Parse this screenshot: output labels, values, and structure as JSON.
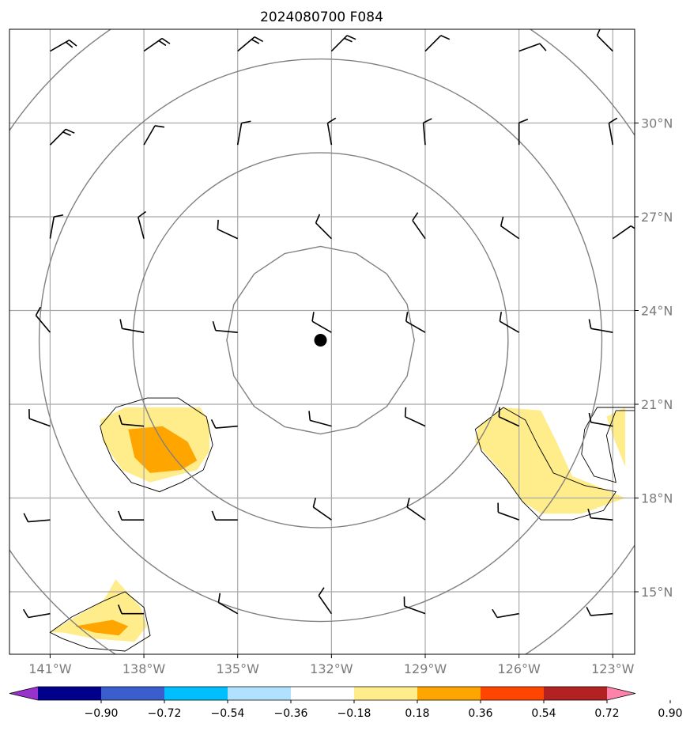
{
  "chart_data": {
    "type": "map",
    "title": "2024080700 F084",
    "x_ticks": [
      {
        "lon": 141,
        "label": "141°W"
      },
      {
        "lon": 138,
        "label": "138°W"
      },
      {
        "lon": 135,
        "label": "135°W"
      },
      {
        "lon": 132,
        "label": "132°W"
      },
      {
        "lon": 129,
        "label": "129°W"
      },
      {
        "lon": 126,
        "label": "126°W"
      },
      {
        "lon": 123,
        "label": "123°W"
      }
    ],
    "y_ticks": [
      {
        "lat": 30,
        "label": "30°N"
      },
      {
        "lat": 27,
        "label": "27°N"
      },
      {
        "lat": 24,
        "label": "24°N"
      },
      {
        "lat": 21,
        "label": "21°N"
      },
      {
        "lat": 18,
        "label": "18°N"
      },
      {
        "lat": 15,
        "label": "15°N"
      }
    ],
    "grid": true,
    "xlim_lon_west": [
      142.3,
      122.3
    ],
    "ylim_lat": [
      13,
      33
    ],
    "center": {
      "lon": 132.35,
      "lat": 23.05
    },
    "range_ring_radii_deg": [
      3,
      6,
      9,
      12
    ],
    "colorbar": {
      "extend": "both",
      "ticks": [
        "−0.90",
        "−0.72",
        "−0.54",
        "−0.36",
        "−0.18",
        "0.18",
        "0.36",
        "0.54",
        "0.72",
        "0.90"
      ],
      "colors": [
        "#9932cc",
        "#00008b",
        "#3a5fcd",
        "#00bfff",
        "#b0e2ff",
        "#ffffff",
        "#ffec8b",
        "#ffa500",
        "#ff4500",
        "#b22222",
        "#ff82ab"
      ]
    },
    "shaded_regions": [
      {
        "level": "0.18–0.36",
        "color": "#ffec8b",
        "polygon": [
          [
            139.4,
            20.5
          ],
          [
            138.6,
            20.9
          ],
          [
            136.2,
            20.9
          ],
          [
            135.9,
            20.4
          ],
          [
            135.9,
            19.5
          ],
          [
            136.3,
            18.9
          ],
          [
            137.8,
            18.5
          ],
          [
            138.7,
            18.9
          ],
          [
            139.3,
            19.8
          ]
        ]
      },
      {
        "level": "0.36–0.54",
        "color": "#ffa500",
        "polygon": [
          [
            138.5,
            20.2
          ],
          [
            137.4,
            20.3
          ],
          [
            136.6,
            19.8
          ],
          [
            136.3,
            19.2
          ],
          [
            136.8,
            18.9
          ],
          [
            137.8,
            18.8
          ],
          [
            138.3,
            19.3
          ]
        ]
      },
      {
        "level": "0.18–0.36",
        "color": "#ffec8b",
        "polygon": [
          [
            127.3,
            20.3
          ],
          [
            126.5,
            20.9
          ],
          [
            125.3,
            20.8
          ],
          [
            124.8,
            19.8
          ],
          [
            124.3,
            18.7
          ],
          [
            123.3,
            18.3
          ],
          [
            122.6,
            18.0
          ],
          [
            124.0,
            17.5
          ],
          [
            125.3,
            17.5
          ],
          [
            125.9,
            17.9
          ],
          [
            126.6,
            18.9
          ],
          [
            127.4,
            19.8
          ]
        ]
      },
      {
        "level": "0.18–0.36",
        "color": "#ffec8b",
        "polygon": [
          [
            122.6,
            20.9
          ],
          [
            123.2,
            20.6
          ],
          [
            123.0,
            20.0
          ],
          [
            122.6,
            19.0
          ]
        ]
      },
      {
        "level": "0.18–0.36",
        "color": "#ffec8b",
        "polygon": [
          [
            141.0,
            13.7
          ],
          [
            140.2,
            14.2
          ],
          [
            139.3,
            14.7
          ],
          [
            138.9,
            15.4
          ],
          [
            138.1,
            14.5
          ],
          [
            137.9,
            13.9
          ],
          [
            138.3,
            13.4
          ],
          [
            139.6,
            13.5
          ],
          [
            140.6,
            13.7
          ]
        ]
      },
      {
        "level": "0.36–0.54",
        "color": "#ffa500",
        "polygon": [
          [
            140.2,
            13.9
          ],
          [
            139.0,
            14.1
          ],
          [
            138.5,
            13.9
          ],
          [
            138.8,
            13.6
          ],
          [
            139.6,
            13.7
          ]
        ]
      }
    ],
    "outline_contours": [
      [
        [
          139.4,
          20.3
        ],
        [
          138.9,
          20.9
        ],
        [
          137.9,
          21.2
        ],
        [
          136.9,
          21.2
        ],
        [
          136.0,
          20.6
        ],
        [
          135.8,
          19.7
        ],
        [
          136.1,
          18.9
        ],
        [
          136.8,
          18.5
        ],
        [
          137.5,
          18.2
        ],
        [
          138.4,
          18.5
        ],
        [
          139.0,
          19.2
        ],
        [
          139.3,
          19.9
        ]
      ],
      [
        [
          127.4,
          20.2
        ],
        [
          126.5,
          20.9
        ],
        [
          125.8,
          20.5
        ],
        [
          125.4,
          19.7
        ],
        [
          124.9,
          18.8
        ],
        [
          123.9,
          18.4
        ],
        [
          122.9,
          18.2
        ],
        [
          123.3,
          17.6
        ],
        [
          124.3,
          17.3
        ],
        [
          125.3,
          17.3
        ],
        [
          125.9,
          17.9
        ],
        [
          126.4,
          18.6
        ],
        [
          127.2,
          19.5
        ]
      ],
      [
        [
          122.3,
          20.8
        ],
        [
          122.9,
          20.8
        ],
        [
          123.2,
          20.0
        ],
        [
          123.0,
          19.0
        ],
        [
          122.9,
          18.5
        ],
        [
          123.6,
          18.7
        ],
        [
          124.0,
          19.4
        ],
        [
          123.9,
          20.2
        ],
        [
          123.5,
          20.9
        ],
        [
          122.3,
          20.9
        ]
      ],
      [
        [
          141.0,
          13.7
        ],
        [
          140.3,
          14.2
        ],
        [
          139.3,
          14.7
        ],
        [
          138.6,
          15.0
        ],
        [
          138.0,
          14.5
        ],
        [
          137.8,
          13.6
        ],
        [
          138.6,
          13.1
        ],
        [
          139.8,
          13.2
        ],
        [
          140.6,
          13.5
        ]
      ]
    ],
    "wind_barbs": [
      {
        "lon": 141,
        "lat": 32.3,
        "dir": 60,
        "speed": 15
      },
      {
        "lon": 138,
        "lat": 32.3,
        "dir": 55,
        "speed": 15
      },
      {
        "lon": 135,
        "lat": 32.3,
        "dir": 50,
        "speed": 15
      },
      {
        "lon": 132,
        "lat": 32.3,
        "dir": 45,
        "speed": 15
      },
      {
        "lon": 129,
        "lat": 32.3,
        "dir": 45,
        "speed": 10
      },
      {
        "lon": 126,
        "lat": 32.3,
        "dir": 70,
        "speed": 10
      },
      {
        "lon": 123,
        "lat": 32.3,
        "dir": 315,
        "speed": 10
      },
      {
        "lon": 141,
        "lat": 29.3,
        "dir": 45,
        "speed": 15
      },
      {
        "lon": 138,
        "lat": 29.3,
        "dir": 30,
        "speed": 10
      },
      {
        "lon": 135,
        "lat": 29.3,
        "dir": 10,
        "speed": 10
      },
      {
        "lon": 132,
        "lat": 29.3,
        "dir": 350,
        "speed": 10
      },
      {
        "lon": 129,
        "lat": 29.3,
        "dir": 355,
        "speed": 10
      },
      {
        "lon": 126,
        "lat": 29.3,
        "dir": 0,
        "speed": 10
      },
      {
        "lon": 123,
        "lat": 29.3,
        "dir": 350,
        "speed": 10
      },
      {
        "lon": 141,
        "lat": 26.3,
        "dir": 10,
        "speed": 10
      },
      {
        "lon": 138,
        "lat": 26.3,
        "dir": 345,
        "speed": 10
      },
      {
        "lon": 135,
        "lat": 26.3,
        "dir": 295,
        "speed": 10
      },
      {
        "lon": 132,
        "lat": 26.3,
        "dir": 315,
        "speed": 10
      },
      {
        "lon": 129,
        "lat": 26.3,
        "dir": 325,
        "speed": 10
      },
      {
        "lon": 126,
        "lat": 26.3,
        "dir": 305,
        "speed": 10
      },
      {
        "lon": 123,
        "lat": 26.3,
        "dir": 55,
        "speed": 10
      },
      {
        "lon": 141,
        "lat": 23.3,
        "dir": 320,
        "speed": 10
      },
      {
        "lon": 138,
        "lat": 23.3,
        "dir": 280,
        "speed": 10
      },
      {
        "lon": 135,
        "lat": 23.3,
        "dir": 275,
        "speed": 10
      },
      {
        "lon": 132,
        "lat": 23.3,
        "dir": 300,
        "speed": 10
      },
      {
        "lon": 129,
        "lat": 23.3,
        "dir": 300,
        "speed": 10
      },
      {
        "lon": 126,
        "lat": 23.3,
        "dir": 300,
        "speed": 10
      },
      {
        "lon": 123,
        "lat": 23.3,
        "dir": 280,
        "speed": 10
      },
      {
        "lon": 141,
        "lat": 20.3,
        "dir": 290,
        "speed": 10
      },
      {
        "lon": 138,
        "lat": 20.3,
        "dir": 275,
        "speed": 10
      },
      {
        "lon": 135,
        "lat": 20.3,
        "dir": 265,
        "speed": 10
      },
      {
        "lon": 132,
        "lat": 20.3,
        "dir": 285,
        "speed": 10
      },
      {
        "lon": 129,
        "lat": 20.3,
        "dir": 295,
        "speed": 10
      },
      {
        "lon": 126,
        "lat": 20.3,
        "dir": 295,
        "speed": 10
      },
      {
        "lon": 123,
        "lat": 20.3,
        "dir": 280,
        "speed": 10
      },
      {
        "lon": 141,
        "lat": 17.3,
        "dir": 265,
        "speed": 10
      },
      {
        "lon": 138,
        "lat": 17.3,
        "dir": 270,
        "speed": 10
      },
      {
        "lon": 135,
        "lat": 17.3,
        "dir": 270,
        "speed": 10
      },
      {
        "lon": 132,
        "lat": 17.3,
        "dir": 305,
        "speed": 10
      },
      {
        "lon": 129,
        "lat": 17.3,
        "dir": 305,
        "speed": 10
      },
      {
        "lon": 126,
        "lat": 17.3,
        "dir": 290,
        "speed": 10
      },
      {
        "lon": 123,
        "lat": 17.3,
        "dir": 275,
        "speed": 10
      },
      {
        "lon": 141,
        "lat": 14.3,
        "dir": 260,
        "speed": 10
      },
      {
        "lon": 138,
        "lat": 14.3,
        "dir": 270,
        "speed": 10
      },
      {
        "lon": 135,
        "lat": 14.3,
        "dir": 300,
        "speed": 10
      },
      {
        "lon": 132,
        "lat": 14.3,
        "dir": 325,
        "speed": 10
      },
      {
        "lon": 129,
        "lat": 14.3,
        "dir": 290,
        "speed": 10
      },
      {
        "lon": 126,
        "lat": 14.3,
        "dir": 260,
        "speed": 10
      },
      {
        "lon": 123,
        "lat": 14.3,
        "dir": 265,
        "speed": 10
      }
    ]
  }
}
